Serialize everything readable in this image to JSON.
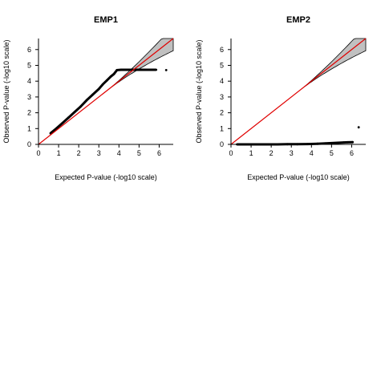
{
  "chart_data": [
    {
      "type": "scatter",
      "title": "EMP1",
      "xlabel": "Expected P-value (-log10 scale)",
      "ylabel": "Observed P-value (-log10 scale)",
      "xlim": [
        0,
        6.7
      ],
      "ylim": [
        0,
        6.7
      ],
      "xticks": [
        "0",
        "1",
        "2",
        "3",
        "4",
        "5",
        "6"
      ],
      "yticks": [
        "0",
        "1",
        "2",
        "3",
        "4",
        "5",
        "6"
      ],
      "reference_line": "y = x",
      "reference_line_color": "#e00000",
      "confidence_band_color": "#c0c0c0",
      "point_color": "#000000",
      "series": [
        {
          "points": [
            [
              0.6,
              0.7
            ],
            [
              0.9,
              1.02
            ],
            [
              1.2,
              1.36
            ],
            [
              1.5,
              1.7
            ],
            [
              1.8,
              2.05
            ],
            [
              2.1,
              2.4
            ],
            [
              2.4,
              2.8
            ],
            [
              2.7,
              3.15
            ],
            [
              3.0,
              3.5
            ],
            [
              3.2,
              3.8
            ],
            [
              3.4,
              4.05
            ],
            [
              3.6,
              4.3
            ],
            [
              3.75,
              4.45
            ],
            [
              3.9,
              4.7
            ],
            [
              4.1,
              4.72
            ],
            [
              4.4,
              4.72
            ],
            [
              4.7,
              4.72
            ],
            [
              5.0,
              4.72
            ],
            [
              5.3,
              4.72
            ],
            [
              5.6,
              4.72
            ],
            [
              5.85,
              4.72
            ],
            [
              6.35,
              4.7
            ]
          ]
        }
      ]
    },
    {
      "type": "scatter",
      "title": "EMP2",
      "xlabel": "Expected P-value (-log10 scale)",
      "ylabel": "Observed P-value (-log10 scale)",
      "xlim": [
        0,
        6.7
      ],
      "ylim": [
        0,
        6.7
      ],
      "xticks": [
        "0",
        "1",
        "2",
        "3",
        "4",
        "5",
        "6"
      ],
      "yticks": [
        "0",
        "1",
        "2",
        "3",
        "4",
        "5",
        "6"
      ],
      "reference_line": "y = x",
      "reference_line_color": "#e00000",
      "confidence_band_color": "#c0c0c0",
      "point_color": "#000000",
      "series": [
        {
          "points": [
            [
              0.3,
              0.0
            ],
            [
              0.8,
              0.0
            ],
            [
              1.3,
              0.0
            ],
            [
              1.8,
              0.0
            ],
            [
              2.3,
              0.0
            ],
            [
              2.8,
              0.01
            ],
            [
              3.3,
              0.01
            ],
            [
              3.8,
              0.02
            ],
            [
              4.3,
              0.04
            ],
            [
              4.7,
              0.06
            ],
            [
              5.0,
              0.08
            ],
            [
              5.3,
              0.1
            ],
            [
              5.6,
              0.12
            ],
            [
              5.8,
              0.13
            ],
            [
              6.05,
              0.14
            ],
            [
              6.35,
              1.08
            ]
          ]
        }
      ]
    }
  ]
}
